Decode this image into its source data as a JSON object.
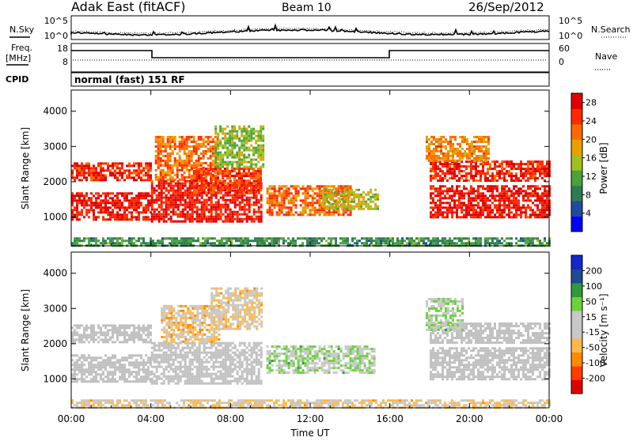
{
  "header": {
    "station": "Adak East (fitACF)",
    "beam": "Beam 10",
    "date": "26/Sep/2012"
  },
  "noise_panel": {
    "left_label": "N.Sky",
    "right_label": "N.Search",
    "left_ticks": [
      "10^5",
      "10^0"
    ],
    "right_ticks": [
      "10^5",
      "10^0"
    ]
  },
  "freq_panel": {
    "left_label_line1": "Freq.",
    "left_label_line2": "[MHz]",
    "right_label": "Nave",
    "left_ticks": [
      "18",
      "8"
    ],
    "right_ticks": [
      "60",
      "0"
    ],
    "cpid_label": "CPID",
    "cpid_text": "normal (fast) 151 RF"
  },
  "colors": {
    "power_scale": [
      "#0000ff",
      "#1e4ba0",
      "#2e7d52",
      "#4aa33a",
      "#a0c020",
      "#e8a000",
      "#ff6a00",
      "#ff2a00",
      "#e00000"
    ],
    "velocity_scale": [
      "#e00000",
      "#ff3c00",
      "#ff8c00",
      "#ffb84a",
      "#c8c8c8",
      "#c8c8c8",
      "#6cd23c",
      "#2e9a3c",
      "#1e4b96",
      "#1428c8"
    ],
    "ground_scatter": "#c0c0c0"
  },
  "chart_data": [
    {
      "type": "heatmap",
      "title": "",
      "xlabel": "",
      "ylabel": "Slant Range [km]",
      "colorbar_label": "Power [dB]",
      "colorbar_ticks": [
        "4",
        "8",
        "12",
        "16",
        "20",
        "24",
        "28"
      ],
      "colorbar_range": [
        0,
        30
      ],
      "x_ticks": [
        "00:00",
        "04:00",
        "08:00",
        "12:00",
        "16:00",
        "20:00",
        "00:00"
      ],
      "y_ticks": [
        "1000",
        "2000",
        "3000",
        "4000"
      ],
      "xlim_hours": [
        0,
        24
      ],
      "ylim_km": [
        180,
        4600
      ],
      "regions": [
        {
          "t": [
            0,
            4.0
          ],
          "r": [
            2050,
            2550
          ],
          "power": 26
        },
        {
          "t": [
            0,
            4.0
          ],
          "r": [
            950,
            1700
          ],
          "power": 27
        },
        {
          "t": [
            4.0,
            9.6
          ],
          "r": [
            850,
            2050
          ],
          "power": 27
        },
        {
          "t": [
            4.2,
            7.4
          ],
          "r": [
            2050,
            3300
          ],
          "power": 22
        },
        {
          "t": [
            6.0,
            9.5
          ],
          "r": [
            1700,
            2400
          ],
          "power": 24
        },
        {
          "t": [
            7.2,
            9.6
          ],
          "r": [
            2400,
            3600
          ],
          "power": 14
        },
        {
          "t": [
            9.8,
            14.0
          ],
          "r": [
            1050,
            1900
          ],
          "power": 22
        },
        {
          "t": [
            12.6,
            15.4
          ],
          "r": [
            1200,
            1800
          ],
          "power": 16
        },
        {
          "t": [
            18.0,
            24.0
          ],
          "r": [
            1000,
            1900
          ],
          "power": 27
        },
        {
          "t": [
            18.0,
            24.0
          ],
          "r": [
            2000,
            2600
          ],
          "power": 26
        },
        {
          "t": [
            17.8,
            21.0
          ],
          "r": [
            2600,
            3300
          ],
          "power": 20
        },
        {
          "t": [
            0,
            24.0
          ],
          "r": [
            180,
            420
          ],
          "power": 10
        }
      ]
    },
    {
      "type": "heatmap",
      "title": "",
      "xlabel": "Time UT",
      "ylabel": "Slant Range [km]",
      "colorbar_label": "Velocity [m s⁻¹]",
      "colorbar_ticks": [
        "200",
        "100",
        "50",
        "15",
        "-15",
        "-50",
        "-100",
        "-200"
      ],
      "colorbar_range": [
        -250,
        250
      ],
      "x_ticks": [
        "00:00",
        "04:00",
        "08:00",
        "12:00",
        "16:00",
        "20:00",
        "00:00"
      ],
      "y_ticks": [
        "1000",
        "2000",
        "3000",
        "4000"
      ],
      "xlim_hours": [
        0,
        24
      ],
      "ylim_km": [
        180,
        4600
      ],
      "regions": [
        {
          "t": [
            0,
            4.0
          ],
          "r": [
            2050,
            2550
          ],
          "kind": "ground"
        },
        {
          "t": [
            0,
            4.0
          ],
          "r": [
            950,
            1700
          ],
          "kind": "ground"
        },
        {
          "t": [
            4.0,
            9.6
          ],
          "r": [
            850,
            2050
          ],
          "kind": "ground"
        },
        {
          "t": [
            4.5,
            7.4
          ],
          "r": [
            2050,
            3100
          ],
          "velocity": -60
        },
        {
          "t": [
            7.0,
            9.6
          ],
          "r": [
            2400,
            3600
          ],
          "velocity": -40
        },
        {
          "t": [
            9.8,
            15.2
          ],
          "r": [
            1150,
            1950
          ],
          "velocity": 40
        },
        {
          "t": [
            18.0,
            24.0
          ],
          "r": [
            1000,
            1900
          ],
          "kind": "ground"
        },
        {
          "t": [
            18.0,
            24.0
          ],
          "r": [
            2000,
            2600
          ],
          "kind": "ground"
        },
        {
          "t": [
            17.8,
            19.6
          ],
          "r": [
            2400,
            3300
          ],
          "velocity": 40
        },
        {
          "t": [
            0,
            24.0
          ],
          "r": [
            180,
            420
          ],
          "velocity": -40
        }
      ]
    }
  ]
}
